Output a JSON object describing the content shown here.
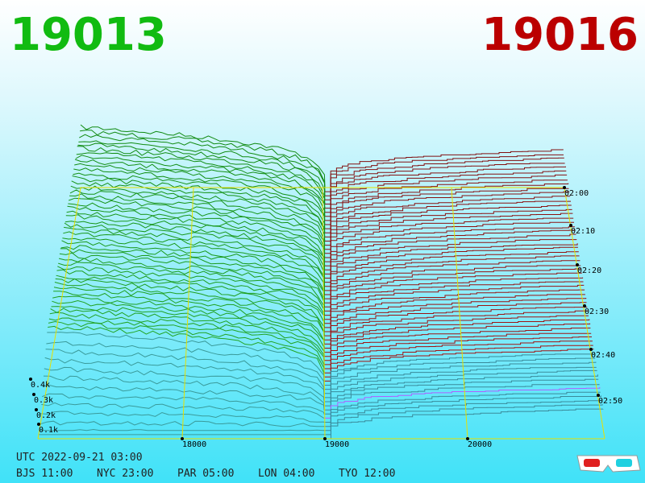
{
  "header": {
    "bid": "19013",
    "ask": "19016"
  },
  "axes": {
    "price_ticks": [
      "18000",
      "19000",
      "20000"
    ],
    "depth_ticks": [
      "0.4k",
      "0.3k",
      "0.2k",
      "0.1k"
    ],
    "time_ticks": [
      "02:00",
      "02:10",
      "02:20",
      "02:30",
      "02:40",
      "02:50"
    ]
  },
  "footer": {
    "utc": "UTC 2022-09-21 03:00",
    "cities": [
      "BJS 11:00",
      "NYC 23:00",
      "PAR 05:00",
      "LON 04:00",
      "TYO 12:00"
    ]
  }
}
